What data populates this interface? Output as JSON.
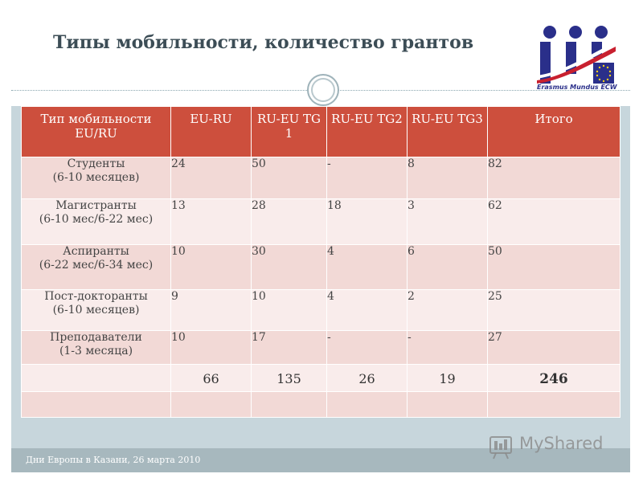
{
  "slide": {
    "title": "Типы мобильности, количество грантов",
    "footer": "Дни Европы в Казани, 26 марта 2010"
  },
  "logo": {
    "text": "Erasmus Mundus ECW"
  },
  "watermark": {
    "text": "MyShared"
  },
  "table": {
    "headers": [
      "Тип мобильности EU/RU",
      "EU-RU",
      "RU-EU TG 1",
      "RU-EU TG2",
      "RU-EU TG3",
      "Итого"
    ],
    "rows": [
      {
        "label": [
          "Студенты",
          "(6-10 месяцев)"
        ],
        "cells": [
          "24",
          "50",
          "-",
          "8",
          "82"
        ]
      },
      {
        "label": [
          "Магистранты",
          "(6-10 мес/6-22 мес)"
        ],
        "cells": [
          "13",
          "28",
          "18",
          "3",
          "62"
        ]
      },
      {
        "label": [
          "Аспиранты",
          "(6-22 мес/6-34 мес)"
        ],
        "cells": [
          "10",
          "30",
          "4",
          "6",
          "50"
        ]
      },
      {
        "label": [
          "Пост-докторанты",
          "(6-10 месяцев)"
        ],
        "cells": [
          "9",
          "10",
          "4",
          "2",
          "25"
        ]
      },
      {
        "label": [
          "Преподаватели",
          "(1-3 месяца)"
        ],
        "cells": [
          "10",
          "17",
          "-",
          "-",
          "27"
        ]
      }
    ],
    "totals": [
      "66",
      "135",
      "26",
      "19",
      "246"
    ]
  },
  "colors": {
    "header": "#cd4f3d",
    "row_dark": "#f2d9d6",
    "row_light": "#f9eceb",
    "frame": "#c7d6dc",
    "title": "#3c4d56"
  }
}
